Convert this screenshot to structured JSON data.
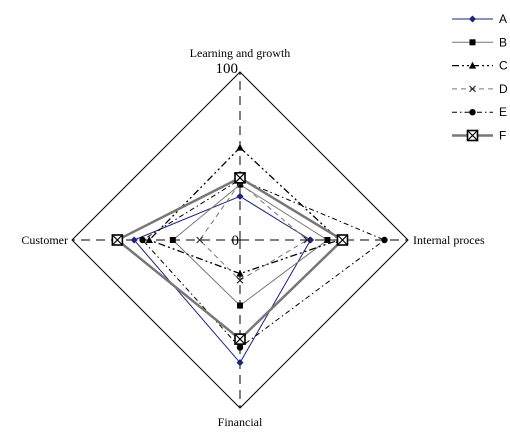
{
  "chart_data": {
    "type": "radar",
    "axes": [
      "Learning and growth",
      "Internal proces",
      "Financial",
      "Customer"
    ],
    "range": [
      0,
      100
    ],
    "tick_labels": [
      "100",
      "0"
    ],
    "grid": false,
    "legend_position": "top-right",
    "series": [
      {
        "name": "A",
        "values": [
          26,
          42,
          73,
          63
        ],
        "color": "#1a237e",
        "dash": "",
        "marker": "diamond",
        "width": 1
      },
      {
        "name": "B",
        "values": [
          33,
          52,
          39,
          40
        ],
        "color": "#777777",
        "dash": "",
        "marker": "square",
        "width": 1
      },
      {
        "name": "C",
        "values": [
          55,
          59,
          20,
          54
        ],
        "color": "#000000",
        "dash": "7 3 2 3 2 3",
        "marker": "triangle",
        "width": 1.3
      },
      {
        "name": "D",
        "values": [
          34,
          40,
          24,
          24
        ],
        "color": "#777777",
        "dash": "5 4",
        "marker": "x",
        "width": 1
      },
      {
        "name": "E",
        "values": [
          36,
          86,
          64,
          58
        ],
        "color": "#000000",
        "dash": "5 3 1.5 3",
        "marker": "circle",
        "width": 1
      },
      {
        "name": "F",
        "values": [
          37,
          61,
          59,
          73
        ],
        "color": "#777777",
        "dash": "",
        "marker": "boxx",
        "width": 2.5
      }
    ]
  }
}
